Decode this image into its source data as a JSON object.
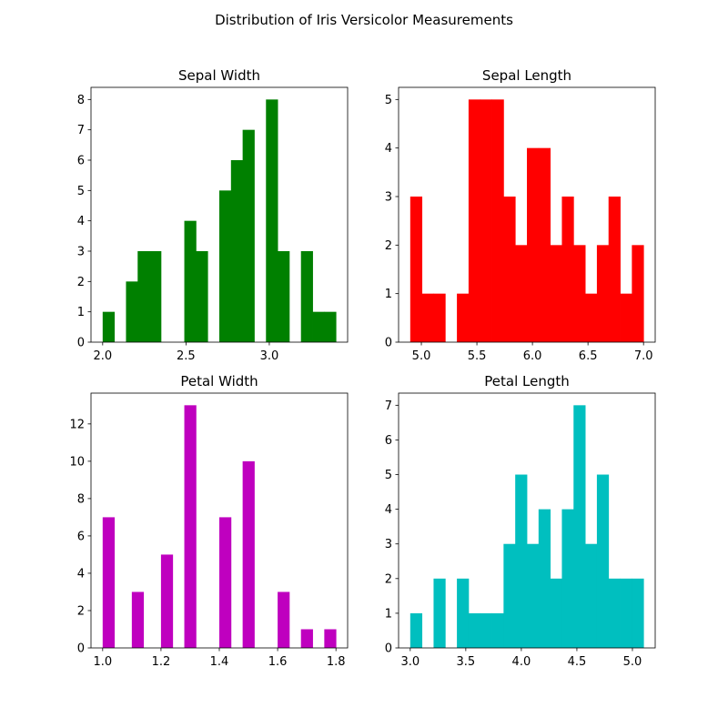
{
  "figure": {
    "suptitle": "Distribution of Iris Versicolor Measurements"
  },
  "chart_data": [
    {
      "type": "bar",
      "title": "Sepal Width",
      "color": "#008000",
      "bin_width": 0.07,
      "x": [
        2.0,
        2.14,
        2.21,
        2.28,
        2.35,
        2.49,
        2.56,
        2.7,
        2.77,
        2.84,
        2.98,
        3.05,
        3.19,
        3.26,
        3.33
      ],
      "values": [
        1,
        2,
        3,
        3,
        0,
        4,
        3,
        5,
        6,
        7,
        8,
        3,
        3,
        1,
        1
      ],
      "xlim": [
        1.93,
        3.47
      ],
      "ylim": [
        0,
        8.4
      ],
      "xticks": [
        2.0,
        2.5,
        3.0
      ],
      "xtick_labels": [
        "2.0",
        "2.5",
        "3.0"
      ],
      "yticks": [
        0,
        1,
        2,
        3,
        4,
        5,
        6,
        7,
        8
      ],
      "ytick_labels": [
        "0",
        "1",
        "2",
        "3",
        "4",
        "5",
        "6",
        "7",
        "8"
      ]
    },
    {
      "type": "bar",
      "title": "Sepal Length",
      "color": "#ff0000",
      "bin_width": 0.105,
      "x": [
        4.9,
        5.005,
        5.11,
        5.215,
        5.32,
        5.425,
        5.53,
        5.635,
        5.74,
        5.845,
        5.95,
        6.055,
        6.16,
        6.265,
        6.37,
        6.475,
        6.58,
        6.685,
        6.79,
        6.895
      ],
      "values": [
        3,
        1,
        1,
        0,
        1,
        5,
        5,
        5,
        3,
        2,
        4,
        4,
        2,
        3,
        2,
        1,
        2,
        3,
        1,
        2
      ],
      "xlim": [
        4.795,
        7.105
      ],
      "ylim": [
        0,
        5.25
      ],
      "xticks": [
        5.0,
        5.5,
        6.0,
        6.5,
        7.0
      ],
      "xtick_labels": [
        "5.0",
        "5.5",
        "6.0",
        "6.5",
        "7.0"
      ],
      "yticks": [
        0,
        1,
        2,
        3,
        4,
        5
      ],
      "ytick_labels": [
        "0",
        "1",
        "2",
        "3",
        "4",
        "5"
      ]
    },
    {
      "type": "bar",
      "title": "Petal Width",
      "color": "#bf00bf",
      "bin_width": 0.04,
      "x": [
        1.0,
        1.1,
        1.2,
        1.28,
        1.4,
        1.48,
        1.6,
        1.68,
        1.76
      ],
      "values": [
        7,
        3,
        5,
        13,
        7,
        10,
        3,
        1,
        1
      ],
      "xlim": [
        0.96,
        1.84
      ],
      "ylim": [
        0,
        13.65
      ],
      "xticks": [
        1.0,
        1.2,
        1.4,
        1.6,
        1.8
      ],
      "xtick_labels": [
        "1.0",
        "1.2",
        "1.4",
        "1.6",
        "1.8"
      ],
      "yticks": [
        0,
        2,
        4,
        6,
        8,
        10,
        12
      ],
      "ytick_labels": [
        "0",
        "2",
        "4",
        "6",
        "8",
        "10",
        "12"
      ]
    },
    {
      "type": "bar",
      "title": "Petal Length",
      "color": "#00bfbf",
      "bin_width": 0.105,
      "x": [
        3.0,
        3.105,
        3.21,
        3.315,
        3.42,
        3.525,
        3.63,
        3.735,
        3.84,
        3.945,
        4.05,
        4.155,
        4.26,
        4.365,
        4.47,
        4.575,
        4.68,
        4.785,
        4.89,
        4.995
      ],
      "values": [
        1,
        0,
        2,
        0,
        2,
        1,
        1,
        1,
        3,
        5,
        3,
        4,
        2,
        4,
        7,
        3,
        5,
        2,
        2,
        2
      ],
      "xlim": [
        2.895,
        5.205
      ],
      "ylim": [
        0,
        7.35
      ],
      "xticks": [
        3.0,
        3.5,
        4.0,
        4.5,
        5.0
      ],
      "xtick_labels": [
        "3.0",
        "3.5",
        "4.0",
        "4.5",
        "5.0"
      ],
      "yticks": [
        0,
        1,
        2,
        3,
        4,
        5,
        6,
        7
      ],
      "ytick_labels": [
        "0",
        "1",
        "2",
        "3",
        "4",
        "5",
        "6",
        "7"
      ]
    }
  ]
}
